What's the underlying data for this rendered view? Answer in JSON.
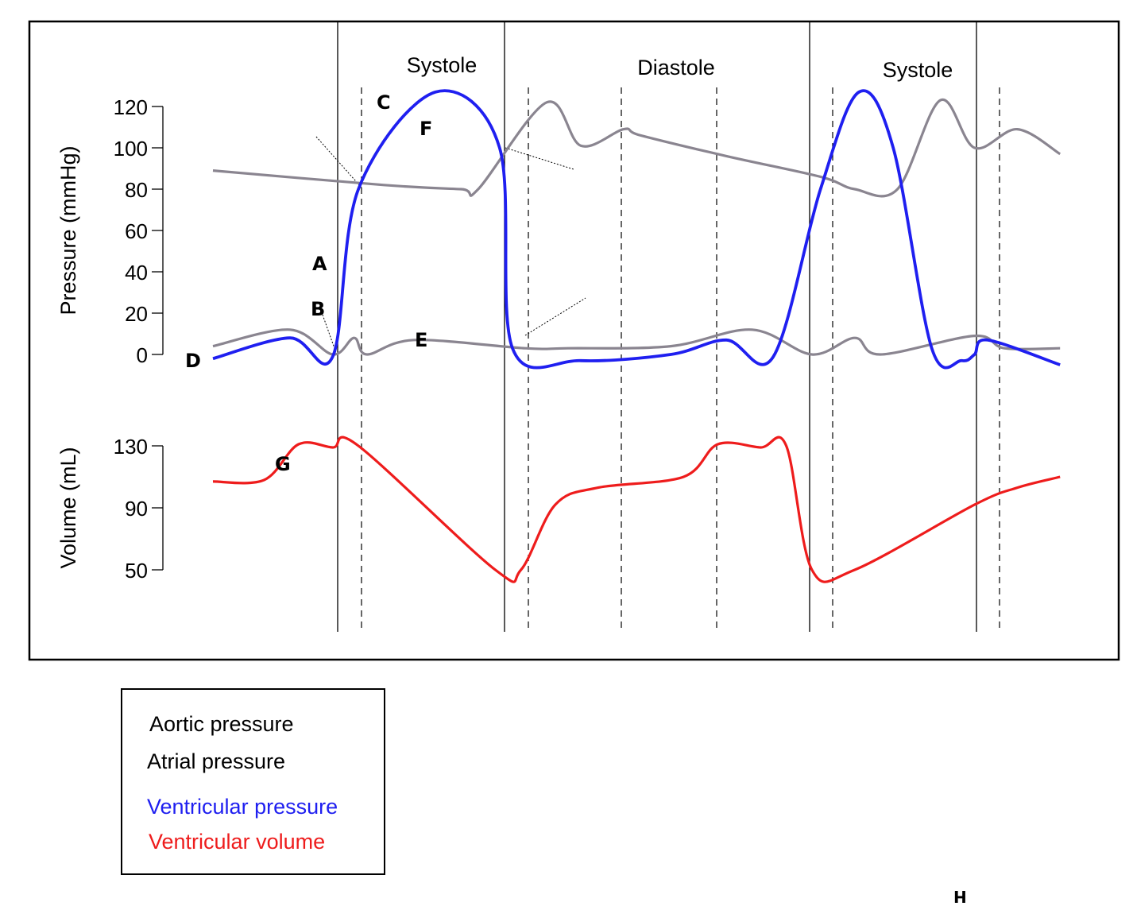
{
  "chart_data": [
    {
      "type": "line",
      "title": "",
      "xlabel": "",
      "ylabel": "Pressure (mmHg)",
      "ylim": [
        0,
        120
      ],
      "yticks": [
        "120",
        "100",
        "80",
        "60",
        "40",
        "20",
        "0"
      ],
      "phases": [
        "Systole",
        "Diastole",
        "Systole"
      ],
      "point_labels": [
        "A",
        "B",
        "C",
        "D",
        "E",
        "F"
      ],
      "series": [
        {
          "name": "Aortic pressure",
          "color": "#8a8590",
          "x": [
            0,
            0.2,
            0.29,
            0.31,
            0.39,
            0.43,
            0.48,
            0.5,
            0.6,
            0.71,
            0.75,
            0.8,
            0.85,
            0.89,
            0.94,
            0.99
          ],
          "y": [
            89,
            82,
            80,
            80,
            122,
            101,
            109,
            106,
            96,
            86,
            80,
            80,
            123,
            100,
            109,
            97
          ]
        },
        {
          "name": "Atrial pressure",
          "color": "#8a8590",
          "x": [
            0,
            0.09,
            0.14,
            0.165,
            0.18,
            0.235,
            0.365,
            0.415,
            0.535,
            0.63,
            0.7,
            0.75,
            0.78,
            0.89,
            0.925,
            0.99
          ],
          "y": [
            4,
            12,
            0,
            8,
            0,
            7,
            3,
            3,
            4,
            12,
            0,
            8,
            0,
            9,
            3,
            3
          ]
        },
        {
          "name": "Ventricular pressure",
          "color": "#1f1ff0",
          "x": [
            0,
            0.09,
            0.14,
            0.17,
            0.26,
            0.335,
            0.35,
            0.43,
            0.535,
            0.6,
            0.655,
            0.71,
            0.755,
            0.795,
            0.84,
            0.875,
            0.89,
            0.905,
            0.99
          ],
          "y": [
            -2,
            8,
            -1,
            80,
            127,
            100,
            3,
            -3,
            0,
            7,
            -1,
            80,
            127,
            100,
            3,
            -3,
            0,
            7,
            -5
          ]
        }
      ]
    },
    {
      "type": "line",
      "title": "",
      "xlabel": "",
      "ylabel": "Volume (mL)",
      "ylim": [
        50,
        130
      ],
      "yticks": [
        "130",
        "90",
        "50"
      ],
      "point_labels": [
        "G"
      ],
      "series": [
        {
          "name": "Ventricular volume",
          "color": "#ee1c1c",
          "x": [
            0,
            0.06,
            0.1,
            0.14,
            0.17,
            0.33,
            0.36,
            0.4,
            0.45,
            0.55,
            0.59,
            0.64,
            0.67,
            0.7,
            0.75,
            0.89,
            0.94,
            0.99
          ],
          "y": [
            107,
            108,
            131,
            129,
            130,
            50,
            50,
            92,
            103,
            110,
            131,
            129,
            130,
            50,
            50,
            92,
            103,
            110
          ]
        }
      ]
    }
  ],
  "legend": {
    "aortic": "Aortic pressure",
    "atrial": "Atrial pressure",
    "ventricular_pressure": "Ventricular pressure",
    "ventricular_volume": "Ventricular volume",
    "colors": {
      "aortic": "#000000",
      "atrial": "#000000",
      "ventricular_pressure": "#1f1ff0",
      "ventricular_volume": "#ee1c1c"
    }
  },
  "corner_mark": "H"
}
